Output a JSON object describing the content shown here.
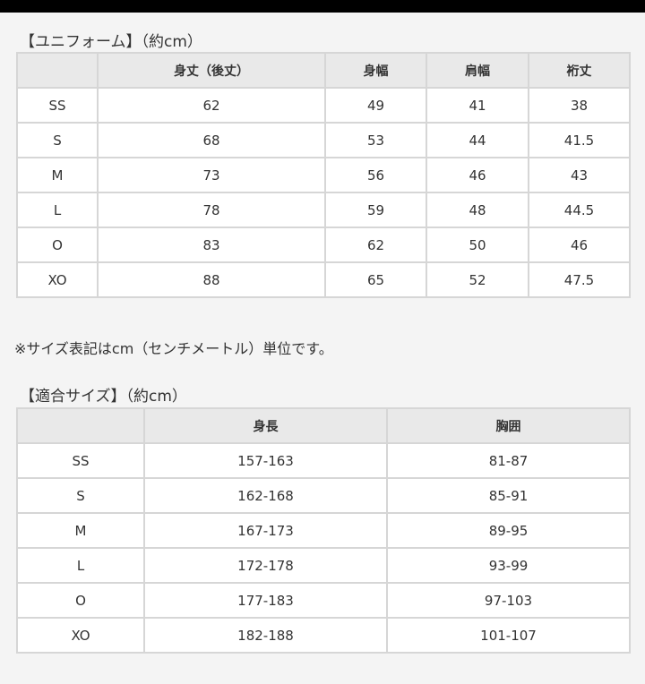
{
  "uniform": {
    "title": "【ユニフォーム】（約cm）",
    "headers": [
      "",
      "身丈（後丈）",
      "身幅",
      "肩幅",
      "裄丈"
    ],
    "rows": [
      [
        "SS",
        "62",
        "49",
        "41",
        "38"
      ],
      [
        "S",
        "68",
        "53",
        "44",
        "41.5"
      ],
      [
        "M",
        "73",
        "56",
        "46",
        "43"
      ],
      [
        "L",
        "78",
        "59",
        "48",
        "44.5"
      ],
      [
        "O",
        "83",
        "62",
        "50",
        "46"
      ],
      [
        "XO",
        "88",
        "65",
        "52",
        "47.5"
      ]
    ]
  },
  "note": "※サイズ表記はcm（センチメートル）単位です。",
  "fit": {
    "title": "【適合サイズ】（約cm）",
    "headers": [
      "",
      "身長",
      "胸囲"
    ],
    "rows": [
      [
        "SS",
        "157-163",
        "81-87"
      ],
      [
        "S",
        "162-168",
        "85-91"
      ],
      [
        "M",
        "167-173",
        "89-95"
      ],
      [
        "L",
        "172-178",
        "93-99"
      ],
      [
        "O",
        "177-183",
        "97-103"
      ],
      [
        "XO",
        "182-188",
        "101-107"
      ]
    ]
  }
}
